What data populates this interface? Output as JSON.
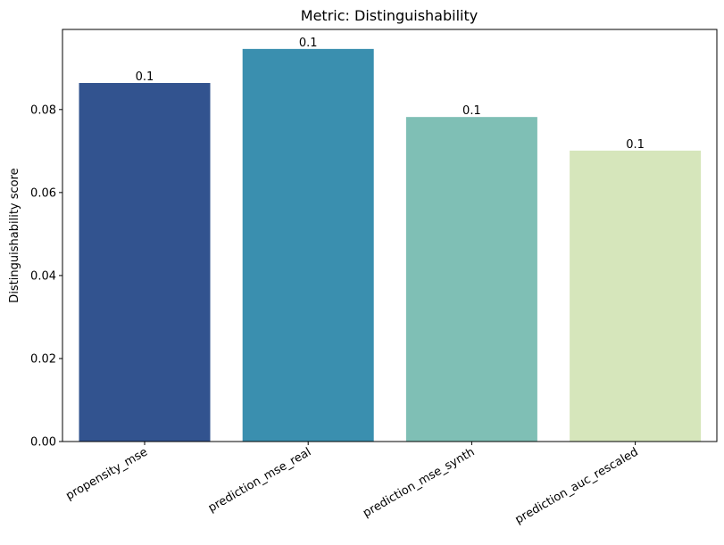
{
  "chart_data": {
    "type": "bar",
    "title": "Metric: Distinguishability",
    "xlabel": "",
    "ylabel": "Distinguishability score",
    "categories": [
      "propensity_mse",
      "prediction_mse_real",
      "prediction_mse_synth",
      "prediction_auc_rescaled"
    ],
    "values": [
      0.0864,
      0.0946,
      0.0782,
      0.0701
    ],
    "data_labels": [
      "0.1",
      "0.1",
      "0.1",
      "0.1"
    ],
    "colors": [
      "#32538f",
      "#3a8faf",
      "#7fbfb5",
      "#d6e6bb"
    ],
    "ylim": [
      0,
      0.0993
    ],
    "yticks": [
      0.0,
      0.02,
      0.04,
      0.06,
      0.08
    ],
    "ytick_labels": [
      "0.00",
      "0.02",
      "0.04",
      "0.06",
      "0.08"
    ],
    "grid": false,
    "legend": "none"
  }
}
